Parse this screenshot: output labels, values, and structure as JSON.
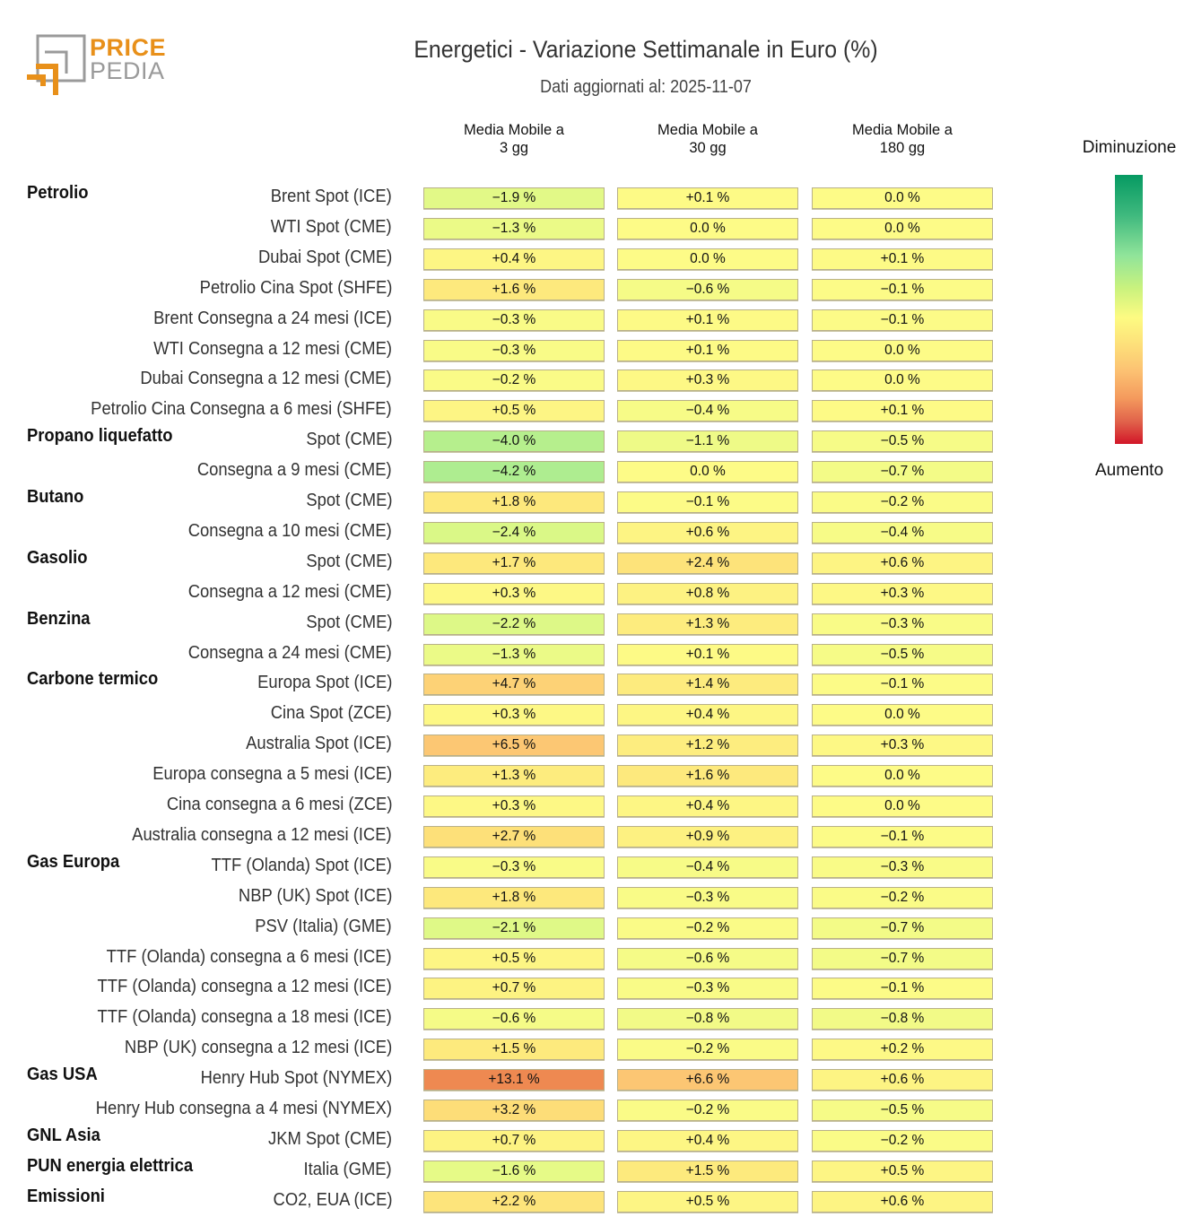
{
  "logo": {
    "line1": "PRICE",
    "line2": "PEDIA"
  },
  "header": {
    "title": "Energetici - Variazione Settimanale in Euro (%)",
    "subtitle": "Dati aggiornati al: 2025-11-07"
  },
  "legend": {
    "top_label": "Diminuzione",
    "bottom_label": "Aumento",
    "colors": {
      "decrease": "#069a62",
      "neutral": "#fdfb82",
      "increase": "#d21628"
    }
  },
  "chart_data": {
    "type": "heatmap",
    "title": "Energetici - Variazione Settimanale in Euro (%)",
    "subtitle": "Dati aggiornati al: 2025-11-07",
    "columns": [
      {
        "line1": "Media Mobile a",
        "line2": "3 gg"
      },
      {
        "line1": "Media Mobile a",
        "line2": "30 gg"
      },
      {
        "line1": "Media Mobile a",
        "line2": "180 gg"
      }
    ],
    "unit": "%",
    "color_scale": {
      "low_label": "Diminuzione",
      "high_label": "Aumento"
    },
    "rows": [
      {
        "group": "Petrolio",
        "label": "Brent Spot (ICE)",
        "values": [
          -1.9,
          0.1,
          0.0
        ]
      },
      {
        "group": "",
        "label": "WTI Spot (CME)",
        "values": [
          -1.3,
          0.0,
          0.0
        ]
      },
      {
        "group": "",
        "label": "Dubai Spot (CME)",
        "values": [
          0.4,
          0.0,
          0.1
        ]
      },
      {
        "group": "",
        "label": "Petrolio Cina Spot (SHFE)",
        "values": [
          1.6,
          -0.6,
          -0.1
        ]
      },
      {
        "group": "",
        "label": "Brent Consegna a 24 mesi (ICE)",
        "values": [
          -0.3,
          0.1,
          -0.1
        ]
      },
      {
        "group": "",
        "label": "WTI Consegna a 12 mesi (CME)",
        "values": [
          -0.3,
          0.1,
          0.0
        ]
      },
      {
        "group": "",
        "label": "Dubai Consegna a 12 mesi (CME)",
        "values": [
          -0.2,
          0.3,
          0.0
        ]
      },
      {
        "group": "",
        "label": "Petrolio Cina Consegna a 6 mesi (SHFE)",
        "values": [
          0.5,
          -0.4,
          0.1
        ]
      },
      {
        "group": "Propano liquefatto",
        "label": "Spot (CME)",
        "values": [
          -4.0,
          -1.1,
          -0.5
        ]
      },
      {
        "group": "",
        "label": "Consegna a 9 mesi (CME)",
        "values": [
          -4.2,
          0.0,
          -0.7
        ]
      },
      {
        "group": "Butano",
        "label": "Spot (CME)",
        "values": [
          1.8,
          -0.1,
          -0.2
        ]
      },
      {
        "group": "",
        "label": "Consegna a 10 mesi (CME)",
        "values": [
          -2.4,
          0.6,
          -0.4
        ]
      },
      {
        "group": "Gasolio",
        "label": "Spot (CME)",
        "values": [
          1.7,
          2.4,
          0.6
        ]
      },
      {
        "group": "",
        "label": "Consegna a 12 mesi (CME)",
        "values": [
          0.3,
          0.8,
          0.3
        ]
      },
      {
        "group": "Benzina",
        "label": "Spot (CME)",
        "values": [
          -2.2,
          1.3,
          -0.3
        ]
      },
      {
        "group": "",
        "label": "Consegna a 24 mesi (CME)",
        "values": [
          -1.3,
          0.1,
          -0.5
        ]
      },
      {
        "group": "Carbone termico",
        "label": "Europa Spot (ICE)",
        "values": [
          4.7,
          1.4,
          -0.1
        ]
      },
      {
        "group": "",
        "label": "Cina Spot (ZCE)",
        "values": [
          0.3,
          0.4,
          0.0
        ]
      },
      {
        "group": "",
        "label": "Australia Spot (ICE)",
        "values": [
          6.5,
          1.2,
          0.3
        ]
      },
      {
        "group": "",
        "label": "Europa consegna a 5 mesi (ICE)",
        "values": [
          1.3,
          1.6,
          0.0
        ]
      },
      {
        "group": "",
        "label": "Cina consegna a 6 mesi (ZCE)",
        "values": [
          0.3,
          0.4,
          0.0
        ]
      },
      {
        "group": "",
        "label": "Australia consegna a 12 mesi (ICE)",
        "values": [
          2.7,
          0.9,
          -0.1
        ]
      },
      {
        "group": "Gas Europa",
        "label": "TTF (Olanda) Spot (ICE)",
        "values": [
          -0.3,
          -0.4,
          -0.3
        ]
      },
      {
        "group": "",
        "label": "NBP (UK) Spot (ICE)",
        "values": [
          1.8,
          -0.3,
          -0.2
        ]
      },
      {
        "group": "",
        "label": "PSV (Italia) (GME)",
        "values": [
          -2.1,
          -0.2,
          -0.7
        ]
      },
      {
        "group": "",
        "label": "TTF (Olanda) consegna a 6 mesi (ICE)",
        "values": [
          0.5,
          -0.6,
          -0.7
        ]
      },
      {
        "group": "",
        "label": "TTF (Olanda) consegna a 12 mesi (ICE)",
        "values": [
          0.7,
          -0.3,
          -0.1
        ]
      },
      {
        "group": "",
        "label": "TTF (Olanda) consegna a 18 mesi (ICE)",
        "values": [
          -0.6,
          -0.8,
          -0.8
        ]
      },
      {
        "group": "",
        "label": "NBP (UK) consegna a 12 mesi (ICE)",
        "values": [
          1.5,
          -0.2,
          0.2
        ]
      },
      {
        "group": "Gas USA",
        "label": "Henry Hub Spot (NYMEX)",
        "values": [
          13.1,
          6.6,
          0.6
        ]
      },
      {
        "group": "",
        "label": "Henry Hub consegna a 4 mesi (NYMEX)",
        "values": [
          3.2,
          -0.2,
          -0.5
        ]
      },
      {
        "group": "GNL Asia",
        "label": "JKM Spot (CME)",
        "values": [
          0.7,
          0.4,
          -0.2
        ]
      },
      {
        "group": "PUN energia elettrica",
        "label": "Italia (GME)",
        "values": [
          -1.6,
          1.5,
          0.5
        ]
      },
      {
        "group": "Emissioni",
        "label": "CO2, EUA (ICE)",
        "values": [
          2.2,
          0.5,
          0.6
        ]
      }
    ]
  }
}
